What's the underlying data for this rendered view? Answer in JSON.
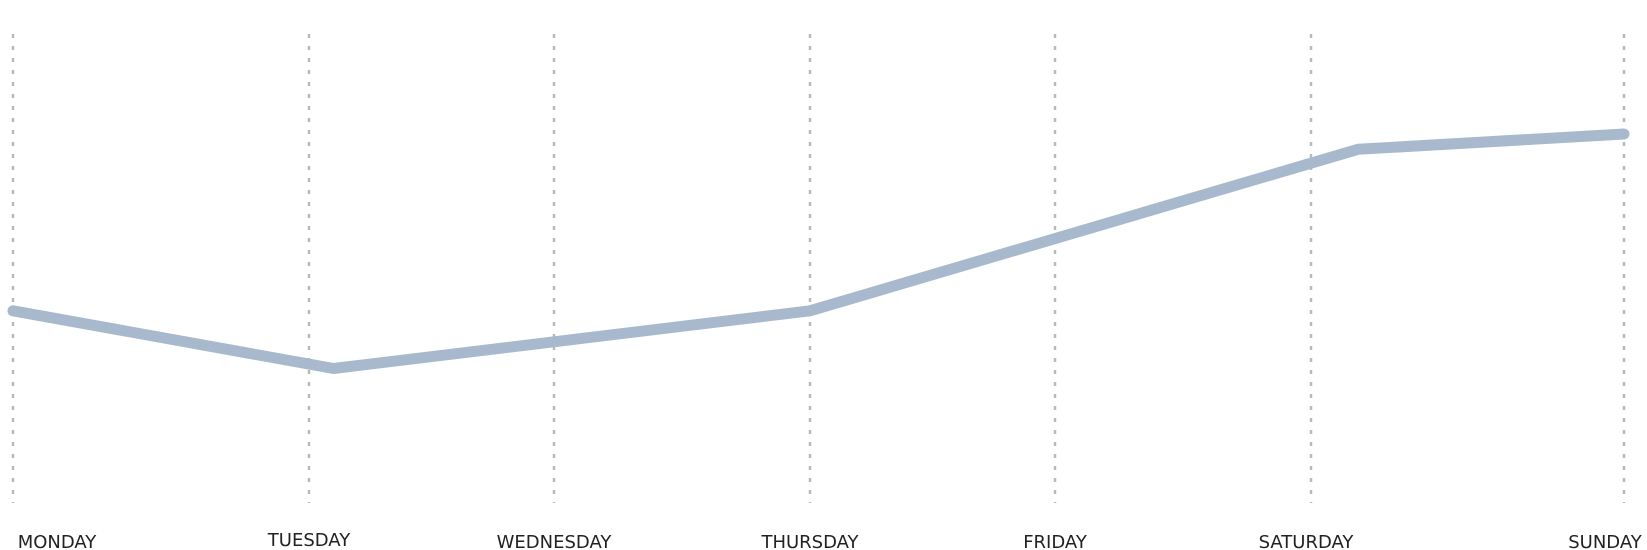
{
  "chart_data": {
    "type": "line",
    "title": "",
    "xlabel": "",
    "ylabel": "",
    "categories": [
      "MONDAY",
      "TUESDAY",
      "WEDNESDAY",
      "THURSDAY",
      "FRIDAY",
      "SATURDAY",
      "SUNDAY"
    ],
    "series": [
      {
        "values": [
          {
            "x": 0.0,
            "y": 48
          },
          {
            "x": 1.1,
            "y": 33
          },
          {
            "x": 3.0,
            "y": 48
          },
          {
            "x": 5.15,
            "y": 90
          },
          {
            "x": 6.0,
            "y": 94
          }
        ],
        "color": "#a9b9cd"
      }
    ],
    "ylim": [
      -2,
      120
    ],
    "grid": "vertical dotted",
    "legend": "none"
  }
}
